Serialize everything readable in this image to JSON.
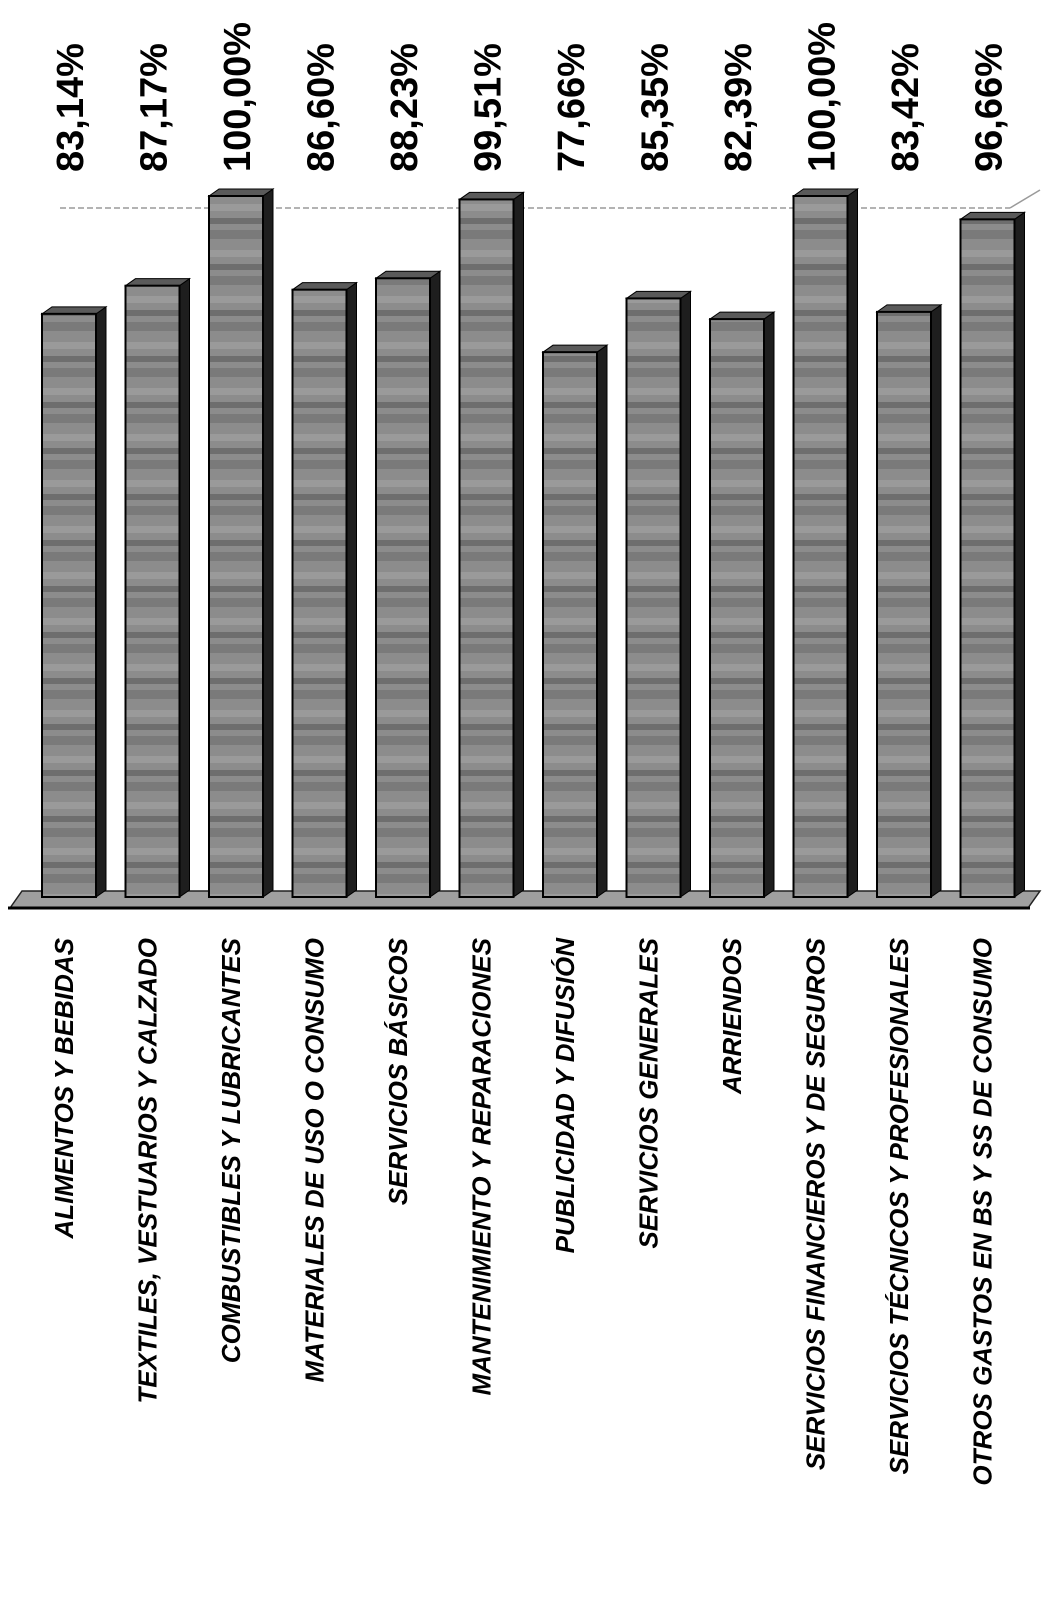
{
  "chart_data": {
    "type": "bar",
    "orientation": "rotated",
    "categories": [
      "Alimentos y Bebidas",
      "Textiles, Vestuarios y Calzado",
      "Combustibles y Lubricantes",
      "Materiales de Uso o Consumo",
      "Servicios Básicos",
      "Mantenimiento y Reparaciones",
      "Publicidad y Difusión",
      "Servicios Generales",
      "Arriendos",
      "Servicios Financieros y de Seguros",
      "Servicios Técnicos y Profesionales",
      "Otros Gastos en Bs y Ss de Consumo"
    ],
    "values": [
      83.14,
      87.17,
      100.0,
      86.6,
      88.23,
      99.51,
      77.66,
      85.35,
      82.39,
      100.0,
      83.42,
      96.66
    ],
    "value_labels": [
      "83,14%",
      "87,17%",
      "100,00%",
      "86,60%",
      "88,23%",
      "99,51%",
      "77,66%",
      "85,35%",
      "82,39%",
      "100,00%",
      "83,42%",
      "96,66%"
    ],
    "ylim": [
      0,
      100
    ],
    "title": "",
    "xlabel": "",
    "ylabel": "",
    "grid": true,
    "legend": "none",
    "bar_color": "#8a8a8a"
  }
}
